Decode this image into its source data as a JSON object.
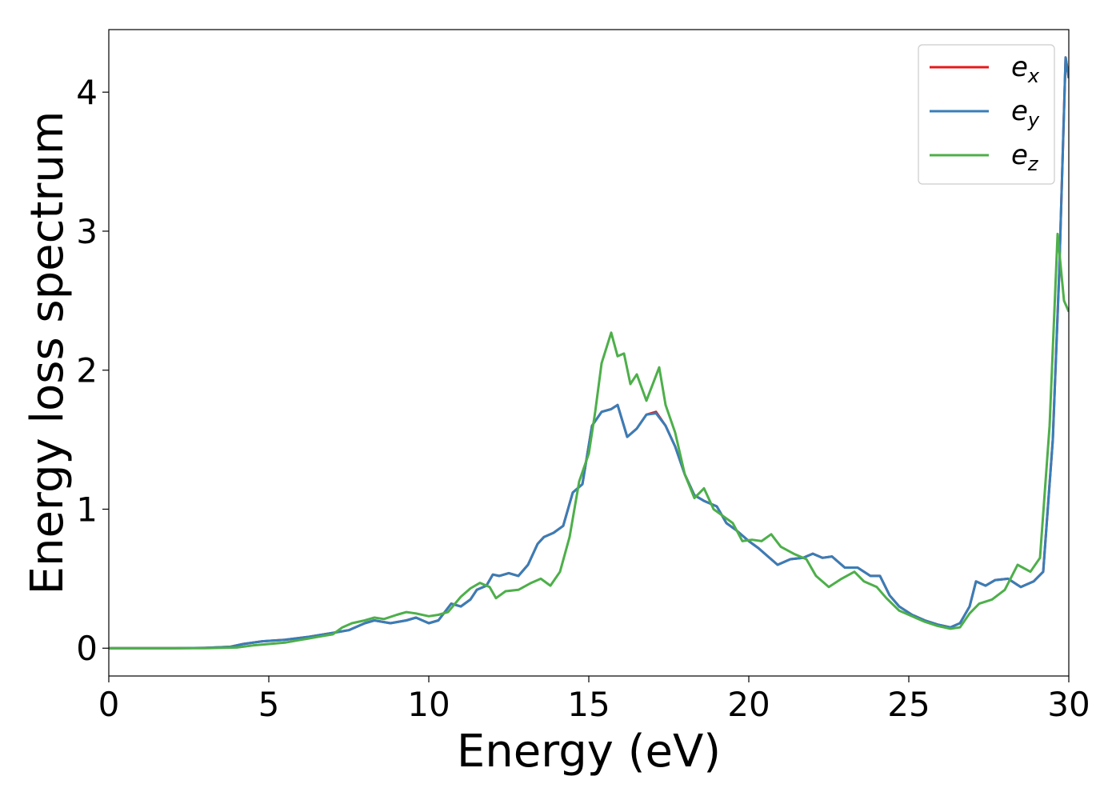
{
  "chart_data": {
    "type": "line",
    "title": "",
    "xlabel": "Energy (eV)",
    "ylabel": "Energy loss spectrum",
    "xlim": [
      0,
      30
    ],
    "ylim": [
      -0.2,
      4.45
    ],
    "x_ticks": [
      "0",
      "5",
      "10",
      "15",
      "20",
      "25",
      "30"
    ],
    "y_ticks": [
      "0",
      "1",
      "2",
      "3",
      "4"
    ],
    "grid": false,
    "legend_position": "top-right",
    "series": [
      {
        "name": "e_x",
        "label_base": "e",
        "label_sub": "x",
        "color": "#e41a1c",
        "points": [
          [
            0,
            0
          ],
          [
            2,
            0
          ],
          [
            3,
            0.002
          ],
          [
            3.8,
            0.01
          ],
          [
            4.2,
            0.03
          ],
          [
            4.8,
            0.05
          ],
          [
            5.5,
            0.06
          ],
          [
            6.2,
            0.08
          ],
          [
            7,
            0.11
          ],
          [
            7.5,
            0.13
          ],
          [
            8,
            0.18
          ],
          [
            8.3,
            0.2
          ],
          [
            8.8,
            0.18
          ],
          [
            9.3,
            0.2
          ],
          [
            9.6,
            0.22
          ],
          [
            10,
            0.18
          ],
          [
            10.3,
            0.2
          ],
          [
            10.7,
            0.32
          ],
          [
            11,
            0.3
          ],
          [
            11.3,
            0.35
          ],
          [
            11.5,
            0.42
          ],
          [
            11.8,
            0.45
          ],
          [
            12,
            0.53
          ],
          [
            12.2,
            0.52
          ],
          [
            12.5,
            0.54
          ],
          [
            12.8,
            0.52
          ],
          [
            13.1,
            0.6
          ],
          [
            13.4,
            0.75
          ],
          [
            13.6,
            0.8
          ],
          [
            13.9,
            0.83
          ],
          [
            14.2,
            0.88
          ],
          [
            14.5,
            1.12
          ],
          [
            14.8,
            1.18
          ],
          [
            15.1,
            1.6
          ],
          [
            15.4,
            1.7
          ],
          [
            15.7,
            1.72
          ],
          [
            15.9,
            1.75
          ],
          [
            16.2,
            1.52
          ],
          [
            16.5,
            1.58
          ],
          [
            16.8,
            1.68
          ],
          [
            17.1,
            1.7
          ],
          [
            17.4,
            1.6
          ],
          [
            17.7,
            1.45
          ],
          [
            18,
            1.25
          ],
          [
            18.3,
            1.1
          ],
          [
            18.6,
            1.06
          ],
          [
            19,
            1.02
          ],
          [
            19.3,
            0.9
          ],
          [
            19.6,
            0.85
          ],
          [
            20,
            0.77
          ],
          [
            20.3,
            0.72
          ],
          [
            20.6,
            0.66
          ],
          [
            20.9,
            0.6
          ],
          [
            21.3,
            0.64
          ],
          [
            21.7,
            0.65
          ],
          [
            22,
            0.68
          ],
          [
            22.3,
            0.65
          ],
          [
            22.6,
            0.66
          ],
          [
            23,
            0.58
          ],
          [
            23.4,
            0.58
          ],
          [
            23.8,
            0.52
          ],
          [
            24.1,
            0.52
          ],
          [
            24.4,
            0.38
          ],
          [
            24.7,
            0.3
          ],
          [
            25.1,
            0.24
          ],
          [
            25.5,
            0.2
          ],
          [
            25.9,
            0.17
          ],
          [
            26.3,
            0.15
          ],
          [
            26.6,
            0.18
          ],
          [
            26.9,
            0.3
          ],
          [
            27.1,
            0.48
          ],
          [
            27.4,
            0.45
          ],
          [
            27.7,
            0.49
          ],
          [
            28.1,
            0.5
          ],
          [
            28.5,
            0.44
          ],
          [
            28.9,
            0.48
          ],
          [
            29.2,
            0.55
          ],
          [
            29.5,
            1.5
          ],
          [
            29.7,
            2.7
          ],
          [
            29.9,
            4.25
          ],
          [
            30,
            4.1
          ]
        ]
      },
      {
        "name": "e_y",
        "label_base": "e",
        "label_sub": "y",
        "color": "#377eb8",
        "points": [
          [
            0,
            0
          ],
          [
            2,
            0
          ],
          [
            3,
            0.002
          ],
          [
            3.8,
            0.01
          ],
          [
            4.2,
            0.03
          ],
          [
            4.8,
            0.05
          ],
          [
            5.5,
            0.06
          ],
          [
            6.2,
            0.08
          ],
          [
            7,
            0.11
          ],
          [
            7.5,
            0.13
          ],
          [
            8,
            0.18
          ],
          [
            8.3,
            0.2
          ],
          [
            8.8,
            0.18
          ],
          [
            9.3,
            0.2
          ],
          [
            9.6,
            0.22
          ],
          [
            10,
            0.18
          ],
          [
            10.3,
            0.2
          ],
          [
            10.7,
            0.32
          ],
          [
            11,
            0.3
          ],
          [
            11.3,
            0.35
          ],
          [
            11.5,
            0.42
          ],
          [
            11.8,
            0.45
          ],
          [
            12,
            0.53
          ],
          [
            12.2,
            0.52
          ],
          [
            12.5,
            0.54
          ],
          [
            12.8,
            0.52
          ],
          [
            13.1,
            0.6
          ],
          [
            13.4,
            0.75
          ],
          [
            13.6,
            0.8
          ],
          [
            13.9,
            0.83
          ],
          [
            14.2,
            0.88
          ],
          [
            14.5,
            1.12
          ],
          [
            14.8,
            1.18
          ],
          [
            15.1,
            1.6
          ],
          [
            15.4,
            1.7
          ],
          [
            15.7,
            1.72
          ],
          [
            15.9,
            1.75
          ],
          [
            16.2,
            1.52
          ],
          [
            16.5,
            1.58
          ],
          [
            16.8,
            1.68
          ],
          [
            17.1,
            1.69
          ],
          [
            17.4,
            1.6
          ],
          [
            17.7,
            1.45
          ],
          [
            18,
            1.25
          ],
          [
            18.3,
            1.1
          ],
          [
            18.6,
            1.06
          ],
          [
            19,
            1.02
          ],
          [
            19.3,
            0.9
          ],
          [
            19.6,
            0.85
          ],
          [
            20,
            0.77
          ],
          [
            20.3,
            0.72
          ],
          [
            20.6,
            0.66
          ],
          [
            20.9,
            0.6
          ],
          [
            21.3,
            0.64
          ],
          [
            21.7,
            0.65
          ],
          [
            22,
            0.68
          ],
          [
            22.3,
            0.65
          ],
          [
            22.6,
            0.66
          ],
          [
            23,
            0.58
          ],
          [
            23.4,
            0.58
          ],
          [
            23.8,
            0.52
          ],
          [
            24.1,
            0.52
          ],
          [
            24.4,
            0.38
          ],
          [
            24.7,
            0.3
          ],
          [
            25.1,
            0.24
          ],
          [
            25.5,
            0.2
          ],
          [
            25.9,
            0.17
          ],
          [
            26.3,
            0.15
          ],
          [
            26.6,
            0.18
          ],
          [
            26.9,
            0.3
          ],
          [
            27.1,
            0.48
          ],
          [
            27.4,
            0.45
          ],
          [
            27.7,
            0.49
          ],
          [
            28.1,
            0.5
          ],
          [
            28.5,
            0.44
          ],
          [
            28.9,
            0.48
          ],
          [
            29.2,
            0.55
          ],
          [
            29.5,
            1.5
          ],
          [
            29.7,
            2.7
          ],
          [
            29.9,
            4.25
          ],
          [
            30,
            4.1
          ]
        ]
      },
      {
        "name": "e_z",
        "label_base": "e",
        "label_sub": "z",
        "color": "#4daf4a",
        "points": [
          [
            0,
            0
          ],
          [
            2,
            0
          ],
          [
            3,
            0
          ],
          [
            4,
            0.005
          ],
          [
            4.5,
            0.02
          ],
          [
            5,
            0.03
          ],
          [
            5.5,
            0.04
          ],
          [
            6,
            0.06
          ],
          [
            6.5,
            0.08
          ],
          [
            7,
            0.1
          ],
          [
            7.3,
            0.15
          ],
          [
            7.6,
            0.18
          ],
          [
            8,
            0.2
          ],
          [
            8.3,
            0.22
          ],
          [
            8.6,
            0.21
          ],
          [
            9,
            0.24
          ],
          [
            9.3,
            0.26
          ],
          [
            9.6,
            0.25
          ],
          [
            10,
            0.23
          ],
          [
            10.3,
            0.24
          ],
          [
            10.6,
            0.26
          ],
          [
            11,
            0.37
          ],
          [
            11.3,
            0.43
          ],
          [
            11.6,
            0.47
          ],
          [
            11.9,
            0.44
          ],
          [
            12.1,
            0.36
          ],
          [
            12.4,
            0.41
          ],
          [
            12.8,
            0.42
          ],
          [
            13.2,
            0.47
          ],
          [
            13.5,
            0.5
          ],
          [
            13.8,
            0.45
          ],
          [
            14.1,
            0.55
          ],
          [
            14.4,
            0.8
          ],
          [
            14.7,
            1.2
          ],
          [
            15,
            1.4
          ],
          [
            15.2,
            1.7
          ],
          [
            15.4,
            2.05
          ],
          [
            15.7,
            2.27
          ],
          [
            15.9,
            2.1
          ],
          [
            16.1,
            2.12
          ],
          [
            16.3,
            1.9
          ],
          [
            16.5,
            1.97
          ],
          [
            16.8,
            1.78
          ],
          [
            17,
            1.9
          ],
          [
            17.2,
            2.02
          ],
          [
            17.4,
            1.75
          ],
          [
            17.7,
            1.55
          ],
          [
            18,
            1.25
          ],
          [
            18.3,
            1.08
          ],
          [
            18.6,
            1.15
          ],
          [
            18.9,
            1.0
          ],
          [
            19.2,
            0.95
          ],
          [
            19.5,
            0.9
          ],
          [
            19.8,
            0.77
          ],
          [
            20.1,
            0.78
          ],
          [
            20.4,
            0.77
          ],
          [
            20.7,
            0.82
          ],
          [
            21,
            0.73
          ],
          [
            21.4,
            0.68
          ],
          [
            21.8,
            0.64
          ],
          [
            22.1,
            0.52
          ],
          [
            22.5,
            0.44
          ],
          [
            22.9,
            0.5
          ],
          [
            23.3,
            0.55
          ],
          [
            23.6,
            0.48
          ],
          [
            24,
            0.44
          ],
          [
            24.3,
            0.36
          ],
          [
            24.7,
            0.27
          ],
          [
            25.1,
            0.23
          ],
          [
            25.5,
            0.19
          ],
          [
            25.9,
            0.16
          ],
          [
            26.3,
            0.14
          ],
          [
            26.6,
            0.15
          ],
          [
            26.9,
            0.25
          ],
          [
            27.2,
            0.32
          ],
          [
            27.6,
            0.35
          ],
          [
            28,
            0.42
          ],
          [
            28.4,
            0.6
          ],
          [
            28.8,
            0.55
          ],
          [
            29.1,
            0.65
          ],
          [
            29.4,
            1.6
          ],
          [
            29.65,
            2.98
          ],
          [
            29.85,
            2.5
          ],
          [
            30,
            2.42
          ]
        ]
      }
    ]
  }
}
